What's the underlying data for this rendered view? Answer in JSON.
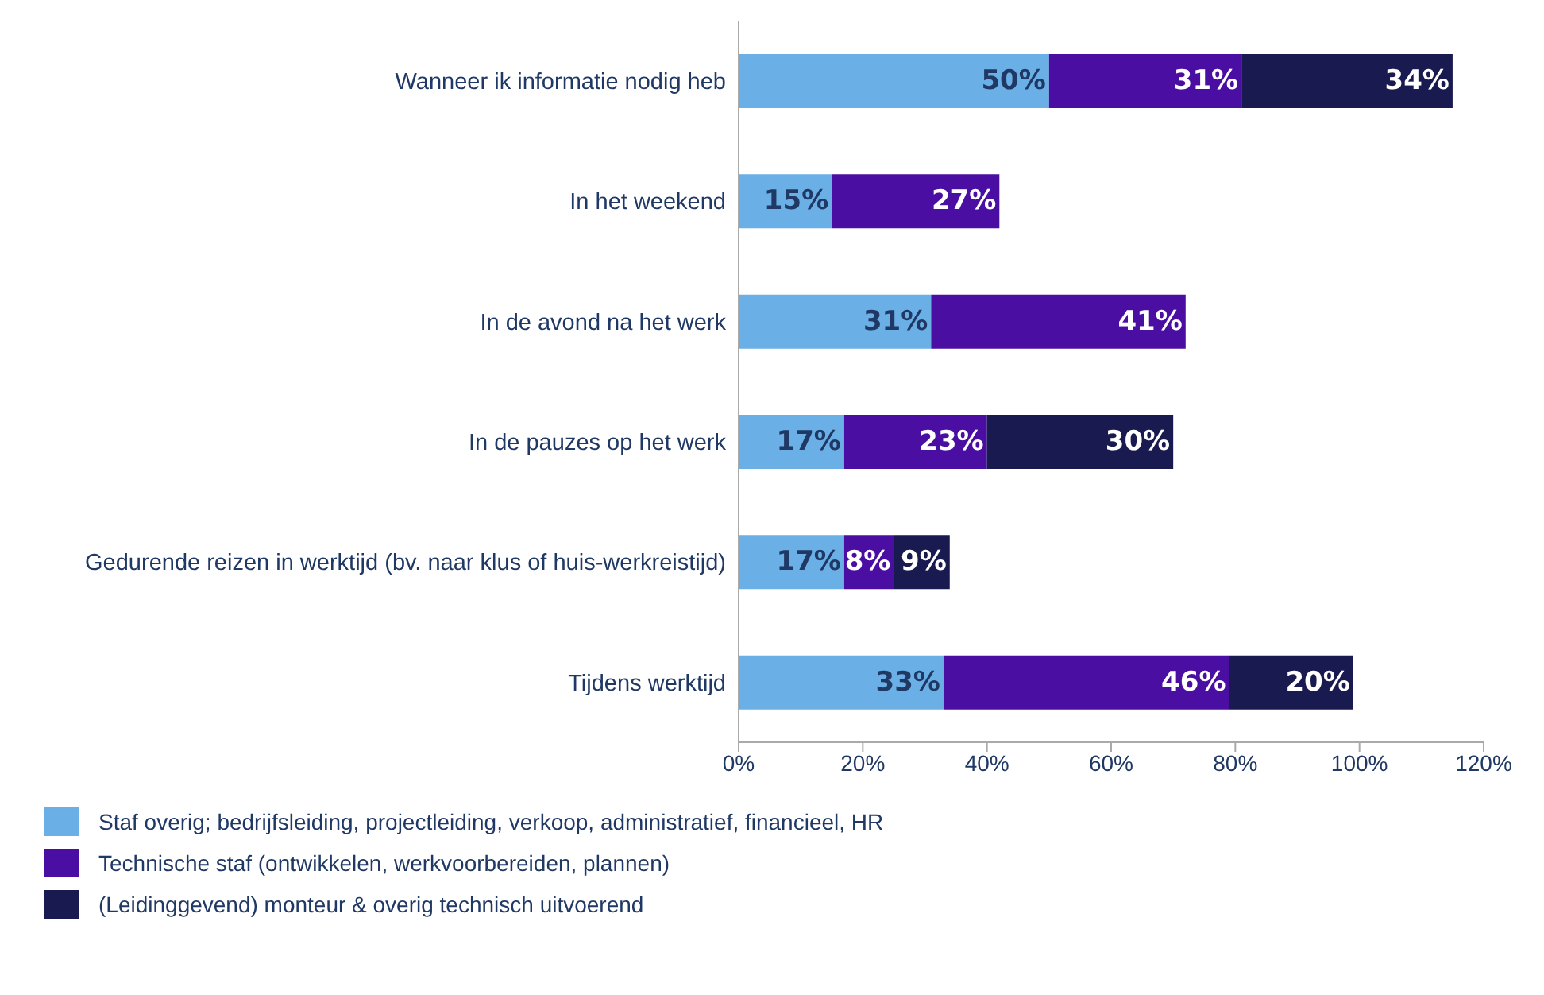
{
  "chart_data": {
    "type": "bar",
    "orientation": "horizontal",
    "stacked": true,
    "categories": [
      "Wanneer ik informatie nodig heb",
      "In het weekend",
      "In de avond na het werk",
      "In de pauzes op het werk",
      "Gedurende reizen in werktijd (bv. naar klus of huis-werkreistijd)",
      "Tijdens werktijd"
    ],
    "series": [
      {
        "name": "Staf overig; bedrijfsleiding, projectleiding, verkoop, administratief, financieel, HR",
        "color": "#6aafe6",
        "values": [
          50,
          15,
          31,
          17,
          17,
          33
        ],
        "value_labels": [
          "50%",
          "15%",
          "31%",
          "17%",
          "17%",
          "33%"
        ]
      },
      {
        "name": "Technische staf (ontwikkelen, werkvoorbereiden, plannen)",
        "color": "#4b0ea3",
        "values": [
          31,
          27,
          41,
          23,
          8,
          46
        ],
        "value_labels": [
          "31%",
          "27%",
          "41%",
          "23%",
          "8%",
          "46%"
        ]
      },
      {
        "name": "(Leidinggevend) monteur & overig technisch uitvoerend",
        "color": "#191a4f",
        "values": [
          34,
          null,
          null,
          30,
          9,
          20
        ],
        "value_labels": [
          "34%",
          null,
          null,
          "30%",
          "9%",
          "20%"
        ]
      }
    ],
    "xlim": [
      0,
      120
    ],
    "xticks": [
      {
        "value": 0,
        "label": "0%"
      },
      {
        "value": 20,
        "label": "20%"
      },
      {
        "value": 40,
        "label": "40%"
      },
      {
        "value": 60,
        "label": "60%"
      },
      {
        "value": 80,
        "label": "80%"
      },
      {
        "value": 100,
        "label": "100%"
      },
      {
        "value": 120,
        "label": "120%"
      }
    ],
    "legend": "bottom left",
    "grid": false
  }
}
